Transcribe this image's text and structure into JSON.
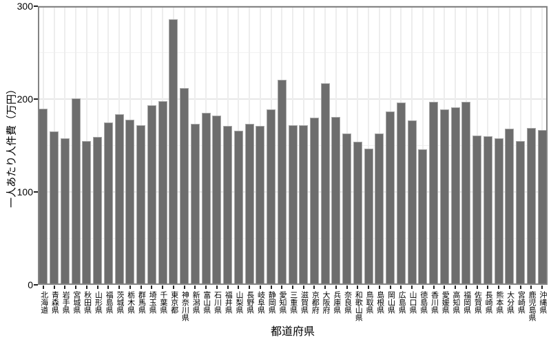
{
  "chart_data": {
    "type": "bar",
    "title": "",
    "xlabel": "都道府県",
    "ylabel": "一人あたり人件費（万円）",
    "ylim": [
      0,
      300
    ],
    "yticks": [
      0,
      100,
      200,
      300
    ],
    "yticks_minor": [
      50,
      150,
      250
    ],
    "legend": "none",
    "grid": "horizontal major at 100/200/300, horizontal minor at 50/150/250, vertical light line at each category",
    "categories": [
      "北海道",
      "青森県",
      "岩手県",
      "宮城県",
      "秋田県",
      "山形県",
      "福島県",
      "茨城県",
      "栃木県",
      "群馬県",
      "埼玉県",
      "千葉県",
      "東京都",
      "神奈川県",
      "新潟県",
      "富山県",
      "石川県",
      "福井県",
      "山梨県",
      "長野県",
      "岐阜県",
      "静岡県",
      "愛知県",
      "三重県",
      "滋賀県",
      "京都府",
      "大阪府",
      "兵庫県",
      "奈良県",
      "和歌山県",
      "鳥取県",
      "島根県",
      "岡山県",
      "広島県",
      "山口県",
      "徳島県",
      "香川県",
      "愛媛県",
      "高知県",
      "福岡県",
      "佐賀県",
      "長崎県",
      "熊本県",
      "大分県",
      "宮崎県",
      "鹿児島県",
      "沖縄県"
    ],
    "values": [
      190,
      165,
      158,
      201,
      155,
      159,
      175,
      184,
      178,
      172,
      193,
      198,
      286,
      212,
      173,
      185,
      182,
      171,
      166,
      173,
      171,
      189,
      221,
      172,
      172,
      180,
      217,
      181,
      163,
      154,
      147,
      163,
      187,
      196,
      177,
      146,
      197,
      189,
      191,
      197,
      161,
      160,
      158,
      168,
      155,
      169,
      167
    ],
    "colors": {
      "bar_fill": "#6d6d6d",
      "bar_stroke": "#a9a9a9",
      "frame": "#838383",
      "grid_major": "#e7e7e7",
      "grid_minor": "#f1f1f1",
      "grid_vertical": "#ededed",
      "text": "#000000",
      "background": "#ffffff"
    }
  }
}
